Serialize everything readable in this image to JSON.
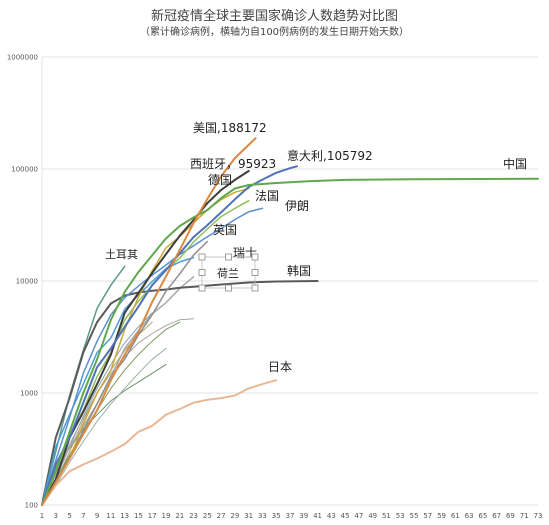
{
  "chart_data": {
    "type": "line",
    "title": "新冠疫情全球主要国家确诊人数趋势对比图",
    "subtitle": "（累计确诊病例，横轴为自100例病例的发生日期开始天数）",
    "xlabel": "",
    "ylabel": "",
    "yscale": "log",
    "ylim": [
      100,
      1000000
    ],
    "xlim": [
      1,
      73
    ],
    "y_ticks": [
      {
        "v": 100,
        "label": "100"
      },
      {
        "v": 1000,
        "label": "1000"
      },
      {
        "v": 10000,
        "label": "10000"
      },
      {
        "v": 100000,
        "label": "100000"
      },
      {
        "v": 1000000,
        "label": "1000000"
      }
    ],
    "x_ticks": [
      1,
      3,
      5,
      7,
      9,
      11,
      13,
      15,
      17,
      19,
      21,
      23,
      25,
      27,
      29,
      31,
      33,
      35,
      37,
      39,
      41,
      43,
      45,
      47,
      49,
      51,
      53,
      55,
      57,
      59,
      61,
      63,
      65,
      67,
      69,
      71,
      73
    ],
    "grid": true,
    "series": [
      {
        "name": "美国",
        "label": "美国,188172",
        "color": "#d9893e",
        "width": 2,
        "points": [
          [
            1,
            100
          ],
          [
            3,
            160
          ],
          [
            5,
            260
          ],
          [
            7,
            430
          ],
          [
            9,
            700
          ],
          [
            11,
            1300
          ],
          [
            13,
            2200
          ],
          [
            15,
            3500
          ],
          [
            17,
            6500
          ],
          [
            19,
            11000
          ],
          [
            21,
            19000
          ],
          [
            23,
            33000
          ],
          [
            25,
            54000
          ],
          [
            27,
            86000
          ],
          [
            29,
            125000
          ],
          [
            31,
            164000
          ],
          [
            32,
            188172
          ]
        ]
      },
      {
        "name": "中国",
        "label": "中国",
        "color": "#5fa84b",
        "width": 2,
        "points": [
          [
            1,
            100
          ],
          [
            3,
            200
          ],
          [
            5,
            450
          ],
          [
            7,
            1000
          ],
          [
            9,
            2000
          ],
          [
            11,
            4500
          ],
          [
            13,
            8000
          ],
          [
            15,
            12000
          ],
          [
            17,
            17000
          ],
          [
            19,
            24000
          ],
          [
            21,
            31000
          ],
          [
            23,
            37000
          ],
          [
            25,
            43000
          ],
          [
            27,
            55000
          ],
          [
            29,
            67000
          ],
          [
            31,
            72000
          ],
          [
            35,
            75000
          ],
          [
            40,
            78000
          ],
          [
            45,
            80000
          ],
          [
            55,
            81000
          ],
          [
            65,
            81500
          ],
          [
            73,
            82000
          ]
        ]
      },
      {
        "name": "意大利",
        "label": "意大利,105792",
        "color": "#4f72b8",
        "width": 2,
        "points": [
          [
            1,
            100
          ],
          [
            3,
            230
          ],
          [
            5,
            400
          ],
          [
            7,
            820
          ],
          [
            9,
            1700
          ],
          [
            11,
            2500
          ],
          [
            13,
            3900
          ],
          [
            15,
            5900
          ],
          [
            17,
            9200
          ],
          [
            19,
            12500
          ],
          [
            21,
            17700
          ],
          [
            23,
            24700
          ],
          [
            25,
            31500
          ],
          [
            27,
            41000
          ],
          [
            29,
            53600
          ],
          [
            31,
            69000
          ],
          [
            33,
            80500
          ],
          [
            35,
            92400
          ],
          [
            37,
            101700
          ],
          [
            38,
            105792
          ]
        ]
      },
      {
        "name": "西班牙",
        "label": "西班牙，95923",
        "color": "#3d3d3d",
        "width": 2,
        "points": [
          [
            1,
            100
          ],
          [
            3,
            170
          ],
          [
            5,
            400
          ],
          [
            7,
            680
          ],
          [
            9,
            1200
          ],
          [
            11,
            2200
          ],
          [
            13,
            5200
          ],
          [
            15,
            7800
          ],
          [
            17,
            11800
          ],
          [
            19,
            17400
          ],
          [
            21,
            25400
          ],
          [
            23,
            35100
          ],
          [
            25,
            49500
          ],
          [
            27,
            65000
          ],
          [
            29,
            80000
          ],
          [
            31,
            95923
          ]
        ]
      },
      {
        "name": "德国",
        "label": "德国",
        "color": "#c9a83a",
        "width": 1.5,
        "points": [
          [
            1,
            100
          ],
          [
            3,
            160
          ],
          [
            5,
            260
          ],
          [
            7,
            530
          ],
          [
            9,
            1000
          ],
          [
            11,
            1600
          ],
          [
            13,
            3700
          ],
          [
            15,
            7200
          ],
          [
            17,
            12300
          ],
          [
            19,
            19800
          ],
          [
            21,
            24900
          ],
          [
            23,
            32900
          ],
          [
            25,
            43200
          ],
          [
            27,
            53300
          ],
          [
            29,
            61900
          ],
          [
            31,
            67000
          ]
        ]
      },
      {
        "name": "法国",
        "label": "法国",
        "color": "#8fbf5a",
        "width": 1.5,
        "points": [
          [
            1,
            100
          ],
          [
            3,
            210
          ],
          [
            5,
            420
          ],
          [
            7,
            700
          ],
          [
            9,
            1400
          ],
          [
            11,
            2300
          ],
          [
            13,
            4500
          ],
          [
            15,
            6600
          ],
          [
            17,
            9100
          ],
          [
            19,
            12600
          ],
          [
            21,
            16000
          ],
          [
            23,
            22300
          ],
          [
            25,
            29100
          ],
          [
            27,
            37600
          ],
          [
            29,
            44500
          ],
          [
            31,
            52100
          ]
        ]
      },
      {
        "name": "伊朗",
        "label": "伊朗",
        "color": "#5b8fd0",
        "width": 1.5,
        "points": [
          [
            1,
            100
          ],
          [
            3,
            250
          ],
          [
            5,
            600
          ],
          [
            7,
            1500
          ],
          [
            9,
            2900
          ],
          [
            11,
            5000
          ],
          [
            13,
            7100
          ],
          [
            15,
            9000
          ],
          [
            17,
            11300
          ],
          [
            19,
            13900
          ],
          [
            21,
            17300
          ],
          [
            23,
            20600
          ],
          [
            25,
            24800
          ],
          [
            27,
            29400
          ],
          [
            29,
            35400
          ],
          [
            31,
            41500
          ],
          [
            33,
            44600
          ]
        ]
      },
      {
        "name": "英国",
        "label": "英国",
        "color": "#8f8f8f",
        "width": 1.5,
        "points": [
          [
            1,
            100
          ],
          [
            3,
            160
          ],
          [
            5,
            270
          ],
          [
            7,
            460
          ],
          [
            9,
            800
          ],
          [
            11,
            1400
          ],
          [
            13,
            2000
          ],
          [
            15,
            3300
          ],
          [
            17,
            5000
          ],
          [
            19,
            8100
          ],
          [
            21,
            11600
          ],
          [
            23,
            17100
          ],
          [
            25,
            22500
          ]
        ]
      },
      {
        "name": "瑞士",
        "label": "瑞士",
        "color": "#4a9fd6",
        "width": 1.5,
        "points": [
          [
            1,
            100
          ],
          [
            3,
            330
          ],
          [
            5,
            640
          ],
          [
            7,
            1200
          ],
          [
            9,
            2300
          ],
          [
            11,
            3100
          ],
          [
            13,
            5600
          ],
          [
            15,
            7500
          ],
          [
            17,
            9900
          ],
          [
            19,
            12900
          ],
          [
            21,
            14800
          ],
          [
            23,
            16200
          ]
        ]
      },
      {
        "name": "韩国",
        "label": "韩国",
        "color": "#5a5a5a",
        "width": 2,
        "points": [
          [
            1,
            100
          ],
          [
            3,
            400
          ],
          [
            5,
            900
          ],
          [
            7,
            2300
          ],
          [
            9,
            4300
          ],
          [
            11,
            6300
          ],
          [
            13,
            7400
          ],
          [
            15,
            7900
          ],
          [
            17,
            8200
          ],
          [
            19,
            8400
          ],
          [
            21,
            8700
          ],
          [
            23,
            8900
          ],
          [
            25,
            9100
          ],
          [
            27,
            9300
          ],
          [
            29,
            9500
          ],
          [
            31,
            9700
          ],
          [
            35,
            9900
          ],
          [
            41,
            10000
          ]
        ]
      },
      {
        "name": "荷兰",
        "label": "荷兰",
        "color": "#a9a9a9",
        "width": 1.5,
        "points": [
          [
            1,
            100
          ],
          [
            3,
            190
          ],
          [
            5,
            330
          ],
          [
            7,
            500
          ],
          [
            9,
            800
          ],
          [
            11,
            1400
          ],
          [
            13,
            2500
          ],
          [
            15,
            3600
          ],
          [
            17,
            5100
          ],
          [
            19,
            6400
          ],
          [
            21,
            8600
          ],
          [
            23,
            10900
          ]
        ]
      },
      {
        "name": "土耳其",
        "label": "土耳其",
        "color": "#5a9a8a",
        "width": 1.5,
        "points": [
          [
            1,
            100
          ],
          [
            3,
            300
          ],
          [
            5,
            950
          ],
          [
            7,
            2400
          ],
          [
            9,
            5700
          ],
          [
            11,
            9200
          ],
          [
            13,
            13500
          ]
        ]
      },
      {
        "name": "日本",
        "label": "日本",
        "color": "#e8b896",
        "width": 2,
        "points": [
          [
            1,
            100
          ],
          [
            3,
            150
          ],
          [
            5,
            200
          ],
          [
            7,
            230
          ],
          [
            9,
            260
          ],
          [
            11,
            300
          ],
          [
            13,
            350
          ],
          [
            15,
            450
          ],
          [
            17,
            510
          ],
          [
            19,
            640
          ],
          [
            21,
            720
          ],
          [
            23,
            820
          ],
          [
            25,
            870
          ],
          [
            27,
            900
          ],
          [
            29,
            950
          ],
          [
            31,
            1100
          ],
          [
            33,
            1200
          ],
          [
            35,
            1300
          ]
        ]
      },
      {
        "name": "",
        "label": "",
        "color": "#7a9a60",
        "width": 1,
        "points": [
          [
            1,
            100
          ],
          [
            3,
            170
          ],
          [
            5,
            280
          ],
          [
            7,
            450
          ],
          [
            9,
            700
          ],
          [
            11,
            1100
          ],
          [
            13,
            1600
          ],
          [
            15,
            2200
          ],
          [
            17,
            2900
          ],
          [
            19,
            3700
          ],
          [
            21,
            4300
          ]
        ]
      },
      {
        "name": "",
        "label": "",
        "color": "#9ab0a0",
        "width": 1,
        "points": [
          [
            1,
            100
          ],
          [
            3,
            150
          ],
          [
            5,
            240
          ],
          [
            7,
            370
          ],
          [
            9,
            560
          ],
          [
            11,
            800
          ],
          [
            13,
            1100
          ],
          [
            15,
            1500
          ],
          [
            17,
            2000
          ],
          [
            19,
            2500
          ]
        ]
      },
      {
        "name": "",
        "label": "",
        "color": "#a5a5a5",
        "width": 1,
        "points": [
          [
            1,
            100
          ],
          [
            3,
            190
          ],
          [
            5,
            350
          ],
          [
            7,
            600
          ],
          [
            9,
            1000
          ],
          [
            11,
            1500
          ],
          [
            13,
            2100
          ],
          [
            15,
            2800
          ],
          [
            17,
            3400
          ],
          [
            19,
            4000
          ],
          [
            21,
            4500
          ],
          [
            23,
            4600
          ]
        ]
      },
      {
        "name": "",
        "label": "",
        "color": "#6f8f6f",
        "width": 1,
        "points": [
          [
            1,
            100
          ],
          [
            3,
            210
          ],
          [
            5,
            320
          ],
          [
            7,
            480
          ],
          [
            9,
            640
          ],
          [
            11,
            850
          ],
          [
            13,
            1050
          ],
          [
            15,
            1250
          ],
          [
            17,
            1500
          ],
          [
            19,
            1800
          ]
        ]
      },
      {
        "name": "",
        "label": "",
        "color": "#b3a36a",
        "width": 1,
        "points": [
          [
            1,
            100
          ],
          [
            3,
            160
          ],
          [
            5,
            300
          ],
          [
            7,
            570
          ],
          [
            9,
            1000
          ],
          [
            11,
            1600
          ],
          [
            13,
            2400
          ],
          [
            15,
            3300
          ],
          [
            17,
            4300
          ]
        ]
      },
      {
        "name": "",
        "label": "",
        "color": "#8aa0b8",
        "width": 1,
        "points": [
          [
            1,
            100
          ],
          [
            3,
            170
          ],
          [
            5,
            330
          ],
          [
            7,
            620
          ],
          [
            9,
            1100
          ],
          [
            11,
            1800
          ],
          [
            13,
            2800
          ],
          [
            15,
            3900
          ],
          [
            17,
            5200
          ]
        ]
      }
    ]
  }
}
